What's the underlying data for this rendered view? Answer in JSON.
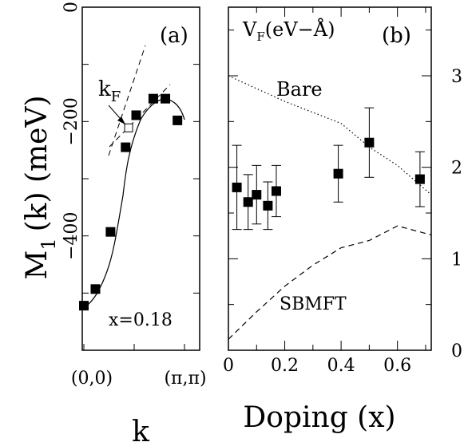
{
  "chart_data": [
    {
      "panel": "(a)",
      "type": "scatter",
      "xlabel": "k",
      "ylabel_main": "M",
      "ylabel_sub": "1",
      "ylabel_rest": "(k)  (meV)",
      "ylim": [
        -600,
        0
      ],
      "yticks": [
        {
          "value": 0,
          "label": "0"
        },
        {
          "value": -200,
          "label": "−200"
        },
        {
          "value": -400,
          "label": "−400"
        }
      ],
      "xticks": [
        "(0,0)",
        "(π,π)"
      ],
      "annotation_kf_main": "k",
      "annotation_kf_sub": "F",
      "annotation_x": "x=0.18",
      "points": [
        {
          "x": 0.0,
          "y": -522
        },
        {
          "x": 0.115,
          "y": -493
        },
        {
          "x": 0.265,
          "y": -393
        },
        {
          "x": 0.415,
          "y": -245
        },
        {
          "x": 0.52,
          "y": -189
        },
        {
          "x": 0.69,
          "y": -160
        },
        {
          "x": 0.81,
          "y": -160
        },
        {
          "x": 0.93,
          "y": -198
        }
      ],
      "kf_point": {
        "x": 0.445,
        "y": -211
      }
    },
    {
      "panel": "(b)",
      "type": "scatter",
      "title_main": "V",
      "title_sub": "F",
      "title_rest": "(eV−Å)",
      "xlabel": "Doping (x)",
      "xlim": [
        0,
        0.72
      ],
      "ylim": [
        0,
        3.75
      ],
      "xticks": [
        {
          "value": 0,
          "label": "0"
        },
        {
          "value": 0.2,
          "label": "0.2"
        },
        {
          "value": 0.4,
          "label": "0.4"
        },
        {
          "value": 0.6,
          "label": "0.6"
        }
      ],
      "yticks": [
        {
          "value": 0,
          "label": "0"
        },
        {
          "value": 1,
          "label": "1"
        },
        {
          "value": 2,
          "label": "2"
        },
        {
          "value": 3,
          "label": "3"
        }
      ],
      "series": [
        {
          "name": "data",
          "style": "squares-with-errorbars",
          "points": [
            {
              "x": 0.03,
              "y": 1.78,
              "err": 0.46
            },
            {
              "x": 0.07,
              "y": 1.62,
              "err": 0.3
            },
            {
              "x": 0.1,
              "y": 1.7,
              "err": 0.32
            },
            {
              "x": 0.14,
              "y": 1.58,
              "err": 0.26
            },
            {
              "x": 0.17,
              "y": 1.74,
              "err": 0.28
            },
            {
              "x": 0.39,
              "y": 1.93,
              "err": 0.31
            },
            {
              "x": 0.5,
              "y": 2.27,
              "err": 0.38
            },
            {
              "x": 0.68,
              "y": 1.87,
              "err": 0.3
            }
          ]
        },
        {
          "name": "Bare",
          "style": "dotted",
          "points": [
            [
              0,
              3.0
            ],
            [
              0.1,
              2.86
            ],
            [
              0.2,
              2.72
            ],
            [
              0.3,
              2.6
            ],
            [
              0.4,
              2.48
            ],
            [
              0.5,
              2.22
            ],
            [
              0.6,
              2.02
            ],
            [
              0.72,
              1.7
            ]
          ]
        },
        {
          "name": "SBMFT",
          "style": "dashed",
          "points": [
            [
              0,
              0.12
            ],
            [
              0.1,
              0.42
            ],
            [
              0.2,
              0.7
            ],
            [
              0.3,
              0.93
            ],
            [
              0.4,
              1.12
            ],
            [
              0.5,
              1.2
            ],
            [
              0.6,
              1.36
            ],
            [
              0.72,
              1.26
            ]
          ]
        }
      ]
    }
  ]
}
